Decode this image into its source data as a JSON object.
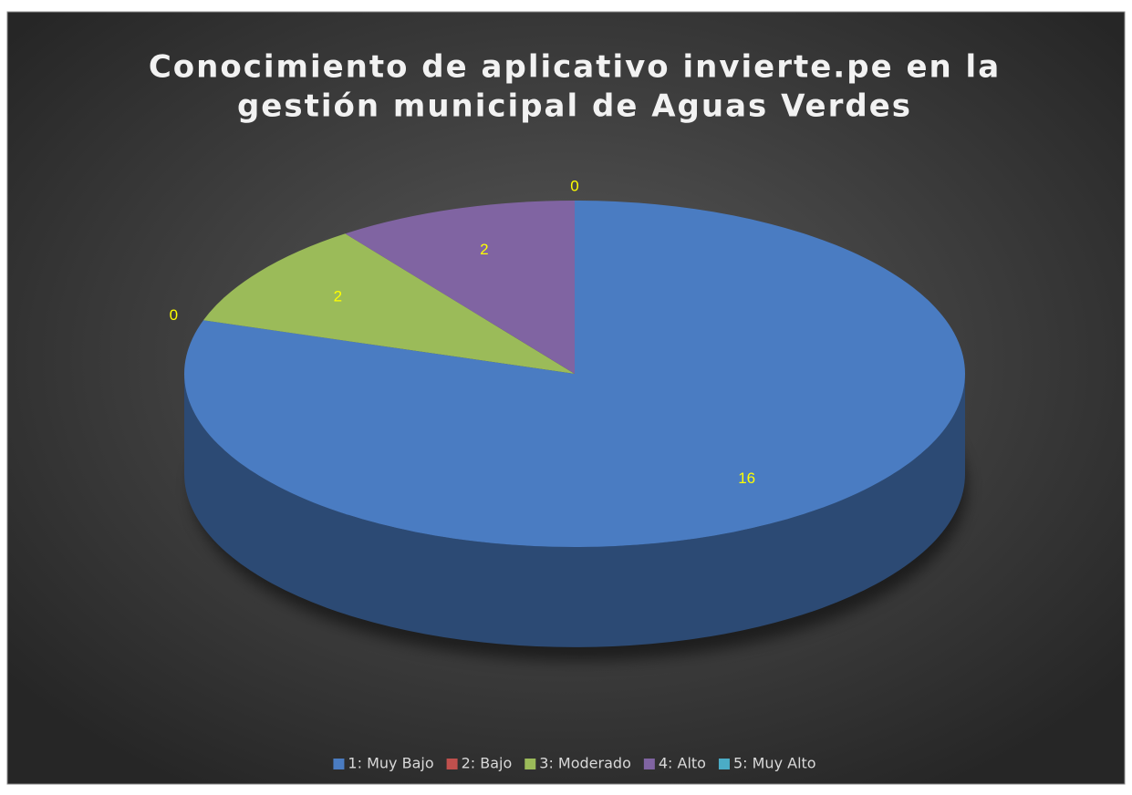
{
  "chart_data": {
    "type": "pie3d",
    "title": [
      "Conocimiento de aplicativo invierte.pe en la",
      "gestión municipal de Aguas Verdes"
    ],
    "categories": [
      "1: Muy Bajo",
      "2: Bajo",
      "3: Moderado",
      "4: Alto",
      "5: Muy Alto"
    ],
    "values": [
      16,
      0,
      2,
      2,
      0
    ],
    "colors": [
      "#4a7cc2",
      "#c0504d",
      "#9bbb59",
      "#8064a2",
      "#4bacc6"
    ],
    "legend": "bottom"
  }
}
